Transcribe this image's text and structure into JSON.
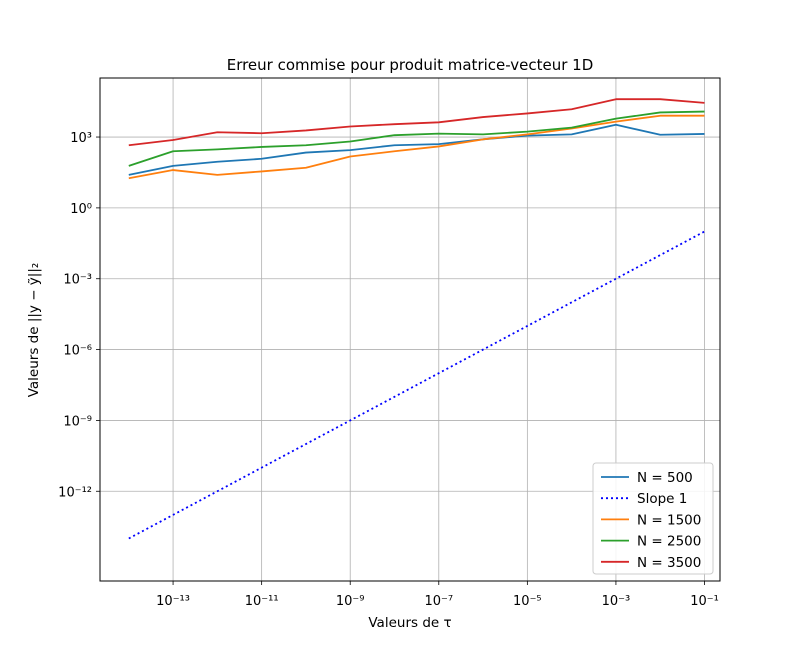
{
  "chart_data": {
    "type": "line",
    "title": "Erreur commise pour produit matrice-vecteur 1D",
    "xlabel": "Valeurs de τ",
    "ylabel": "Valeurs de ||y − ỹ||₂",
    "xscale": "log",
    "yscale": "log",
    "xlim_exp": [
      -14.65,
      -0.65
    ],
    "ylim_exp": [
      -15.8,
      5.5
    ],
    "x_ticks": [
      {
        "exp": -13,
        "label": "10⁻¹³"
      },
      {
        "exp": -11,
        "label": "10⁻¹¹"
      },
      {
        "exp": -9,
        "label": "10⁻⁹"
      },
      {
        "exp": -7,
        "label": "10⁻⁷"
      },
      {
        "exp": -5,
        "label": "10⁻⁵"
      },
      {
        "exp": -3,
        "label": "10⁻³"
      },
      {
        "exp": -1,
        "label": "10⁻¹"
      }
    ],
    "y_ticks": [
      {
        "exp": 3,
        "label": "10³"
      },
      {
        "exp": 0,
        "label": "10⁰"
      },
      {
        "exp": -3,
        "label": "10⁻³"
      },
      {
        "exp": -6,
        "label": "10⁻⁶"
      },
      {
        "exp": -9,
        "label": "10⁻⁹"
      },
      {
        "exp": -12,
        "label": "10⁻¹²"
      }
    ],
    "grid": true,
    "legend_position": "lower right",
    "x": [
      1e-14,
      1e-13,
      1e-12,
      1e-11,
      1e-10,
      1e-09,
      1e-08,
      1e-07,
      1e-06,
      1e-05,
      0.0001,
      0.001,
      0.01,
      0.1
    ],
    "series": [
      {
        "name": "N = 500",
        "color": "#1f77b4",
        "style": "solid",
        "values": [
          25,
          60,
          90,
          120,
          220,
          280,
          450,
          500,
          800,
          1150,
          1300,
          3300,
          1250,
          1350
        ]
      },
      {
        "name": "Slope 1",
        "color": "#0000ff",
        "style": "dotted",
        "values": [
          1e-14,
          1e-13,
          1e-12,
          1e-11,
          1e-10,
          1e-09,
          1e-08,
          1e-07,
          1e-06,
          1e-05,
          0.0001,
          0.001,
          0.01,
          0.1
        ]
      },
      {
        "name": "N = 1500",
        "color": "#ff7f0e",
        "style": "solid",
        "values": [
          18,
          40,
          25,
          35,
          50,
          150,
          250,
          400,
          800,
          1300,
          2300,
          4500,
          8000,
          8000
        ]
      },
      {
        "name": "N = 2500",
        "color": "#2ca02c",
        "style": "solid",
        "values": [
          60,
          250,
          300,
          380,
          450,
          650,
          1200,
          1400,
          1300,
          1700,
          2500,
          6000,
          11000,
          12000
        ]
      },
      {
        "name": "N = 3500",
        "color": "#d62728",
        "style": "solid",
        "values": [
          450,
          750,
          1600,
          1450,
          1900,
          2800,
          3500,
          4200,
          7000,
          10000,
          15000,
          40000,
          40000,
          28000
        ]
      }
    ]
  }
}
